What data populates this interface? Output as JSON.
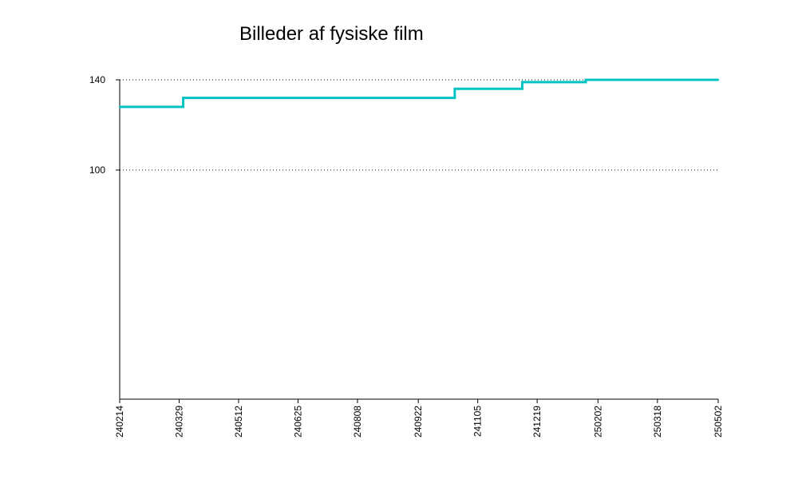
{
  "chart_data": {
    "type": "line",
    "title": "Billeder af fysiske film",
    "xlabel": "",
    "ylabel": "",
    "x_tick_labels": [
      "240214",
      "240329",
      "240512",
      "240625",
      "240808",
      "240922",
      "241105",
      "241219",
      "250202",
      "250318",
      "250502"
    ],
    "y_ticks": [
      100,
      140
    ],
    "grid": true,
    "series": [
      {
        "color": "#00c4c4",
        "step": true,
        "points": [
          {
            "x": "240214",
            "y": 128
          },
          {
            "x": "240401",
            "y": 132
          },
          {
            "x": "241019",
            "y": 136
          },
          {
            "x": "241208",
            "y": 139
          },
          {
            "x": "250124",
            "y": 140
          },
          {
            "x": "250502",
            "y": 140
          }
        ]
      }
    ]
  }
}
